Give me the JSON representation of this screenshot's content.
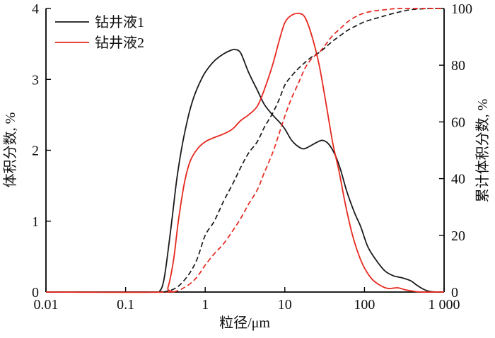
{
  "figure_title": "",
  "chart_data": {
    "type": "line",
    "x_scale": "log",
    "xlabel": "粒径/μm",
    "y_left_label": "体积分数, %",
    "y_right_label": "累计体积分数, %",
    "x_range": [
      0.01,
      1000
    ],
    "y_left_range": [
      0,
      4
    ],
    "y_right_range": [
      0,
      100
    ],
    "x_ticks": [
      {
        "value": 0.01,
        "label": "0.01"
      },
      {
        "value": 0.1,
        "label": "0.1"
      },
      {
        "value": 1,
        "label": "1"
      },
      {
        "value": 10,
        "label": "10"
      },
      {
        "value": 100,
        "label": "100"
      },
      {
        "value": 1000,
        "label": "1 000"
      }
    ],
    "y_left_ticks": [
      {
        "value": 0,
        "label": "0"
      },
      {
        "value": 1,
        "label": "1"
      },
      {
        "value": 2,
        "label": "2"
      },
      {
        "value": 3,
        "label": "3"
      },
      {
        "value": 4,
        "label": "4"
      }
    ],
    "y_right_ticks": [
      {
        "value": 0,
        "label": "0"
      },
      {
        "value": 20,
        "label": "20"
      },
      {
        "value": 40,
        "label": "40"
      },
      {
        "value": 60,
        "label": "60"
      },
      {
        "value": 80,
        "label": "80"
      },
      {
        "value": 100,
        "label": "100"
      }
    ],
    "grid": false,
    "legend_position": "top-left-inside",
    "legend": [
      {
        "label": "钻井液1",
        "color": "#1a1a1a"
      },
      {
        "label": "钻井液2",
        "color": "#e6281e"
      }
    ],
    "colors": {
      "fluid1": "#1a1a1a",
      "fluid2": "#e6281e",
      "axis": "#000000"
    },
    "series": [
      {
        "name": "钻井液1 体积分数",
        "legend": "钻井液1",
        "axis": "left",
        "style": "solid",
        "color": "#1a1a1a",
        "points": [
          [
            0.01,
            0
          ],
          [
            0.22,
            0
          ],
          [
            0.27,
            0.02
          ],
          [
            0.3,
            0.15
          ],
          [
            0.33,
            0.45
          ],
          [
            0.38,
            1.0
          ],
          [
            0.44,
            1.6
          ],
          [
            0.52,
            2.1
          ],
          [
            0.62,
            2.5
          ],
          [
            0.72,
            2.75
          ],
          [
            0.85,
            2.95
          ],
          [
            1.0,
            3.1
          ],
          [
            1.3,
            3.26
          ],
          [
            1.7,
            3.36
          ],
          [
            2.1,
            3.41
          ],
          [
            2.4,
            3.42
          ],
          [
            2.8,
            3.37
          ],
          [
            3.5,
            3.1
          ],
          [
            4.5,
            2.85
          ],
          [
            5.5,
            2.65
          ],
          [
            7.0,
            2.5
          ],
          [
            8.5,
            2.4
          ],
          [
            10,
            2.3
          ],
          [
            12,
            2.15
          ],
          [
            14,
            2.07
          ],
          [
            17,
            2.02
          ],
          [
            20,
            2.05
          ],
          [
            25,
            2.11
          ],
          [
            30,
            2.14
          ],
          [
            36,
            2.08
          ],
          [
            43,
            1.93
          ],
          [
            50,
            1.73
          ],
          [
            60,
            1.42
          ],
          [
            75,
            1.12
          ],
          [
            90,
            0.92
          ],
          [
            110,
            0.64
          ],
          [
            140,
            0.45
          ],
          [
            180,
            0.3
          ],
          [
            230,
            0.23
          ],
          [
            300,
            0.2
          ],
          [
            380,
            0.16
          ],
          [
            450,
            0.1
          ],
          [
            550,
            0.04
          ],
          [
            650,
            0.01
          ],
          [
            800,
            0
          ],
          [
            1000,
            0
          ]
        ]
      },
      {
        "name": "钻井液2 体积分数",
        "legend": "钻井液2",
        "axis": "left",
        "style": "solid",
        "color": "#e6281e",
        "points": [
          [
            0.01,
            0
          ],
          [
            0.3,
            0
          ],
          [
            0.34,
            0.06
          ],
          [
            0.4,
            0.45
          ],
          [
            0.46,
            1.0
          ],
          [
            0.55,
            1.55
          ],
          [
            0.65,
            1.85
          ],
          [
            0.8,
            2.02
          ],
          [
            1.0,
            2.12
          ],
          [
            1.3,
            2.18
          ],
          [
            1.7,
            2.23
          ],
          [
            2.2,
            2.3
          ],
          [
            2.8,
            2.42
          ],
          [
            3.5,
            2.5
          ],
          [
            4.5,
            2.62
          ],
          [
            5.5,
            2.85
          ],
          [
            7.0,
            3.2
          ],
          [
            8.5,
            3.55
          ],
          [
            10,
            3.8
          ],
          [
            12,
            3.9
          ],
          [
            15,
            3.93
          ],
          [
            18,
            3.87
          ],
          [
            22,
            3.6
          ],
          [
            27,
            3.2
          ],
          [
            33,
            2.65
          ],
          [
            40,
            2.1
          ],
          [
            48,
            1.7
          ],
          [
            58,
            1.22
          ],
          [
            70,
            0.82
          ],
          [
            85,
            0.52
          ],
          [
            100,
            0.34
          ],
          [
            125,
            0.18
          ],
          [
            160,
            0.09
          ],
          [
            200,
            0.05
          ],
          [
            260,
            0.06
          ],
          [
            330,
            0.03
          ],
          [
            420,
            0.01
          ],
          [
            520,
            0
          ],
          [
            1000,
            0
          ]
        ]
      },
      {
        "name": "钻井液1 累计体积分数",
        "legend": "钻井液1",
        "axis": "right",
        "style": "dashed",
        "color": "#1a1a1a",
        "points": [
          [
            0.3,
            0
          ],
          [
            0.4,
            1
          ],
          [
            0.5,
            3
          ],
          [
            0.65,
            7
          ],
          [
            0.8,
            12
          ],
          [
            1.0,
            20
          ],
          [
            1.3,
            25
          ],
          [
            1.7,
            32
          ],
          [
            2.2,
            38
          ],
          [
            2.8,
            44
          ],
          [
            3.5,
            49
          ],
          [
            4.5,
            53
          ],
          [
            5.5,
            58
          ],
          [
            7,
            63
          ],
          [
            8.5,
            68
          ],
          [
            10,
            73
          ],
          [
            12,
            76
          ],
          [
            15,
            79
          ],
          [
            18,
            81
          ],
          [
            22,
            83
          ],
          [
            27,
            84.5
          ],
          [
            33,
            86.5
          ],
          [
            40,
            88.5
          ],
          [
            50,
            90.5
          ],
          [
            63,
            92.5
          ],
          [
            80,
            94
          ],
          [
            100,
            95.3
          ],
          [
            130,
            96.3
          ],
          [
            160,
            97
          ],
          [
            200,
            97.8
          ],
          [
            260,
            98.6
          ],
          [
            330,
            99.3
          ],
          [
            420,
            99.7
          ],
          [
            550,
            99.9
          ],
          [
            700,
            100
          ],
          [
            1000,
            100
          ]
        ]
      },
      {
        "name": "钻井液2 累计体积分数",
        "legend": "钻井液2",
        "axis": "right",
        "style": "dashed",
        "color": "#e6281e",
        "points": [
          [
            0.4,
            0
          ],
          [
            0.5,
            1
          ],
          [
            0.65,
            3
          ],
          [
            0.8,
            5.5
          ],
          [
            1.0,
            9.5
          ],
          [
            1.3,
            13.5
          ],
          [
            1.7,
            17
          ],
          [
            2.2,
            21.5
          ],
          [
            2.8,
            26
          ],
          [
            3.5,
            31
          ],
          [
            4.5,
            36
          ],
          [
            5.5,
            42
          ],
          [
            7,
            49
          ],
          [
            8.5,
            56
          ],
          [
            10,
            62
          ],
          [
            12,
            68
          ],
          [
            15,
            74
          ],
          [
            18,
            79
          ],
          [
            22,
            82.5
          ],
          [
            27,
            84.5
          ],
          [
            33,
            87.5
          ],
          [
            40,
            90.5
          ],
          [
            50,
            93
          ],
          [
            63,
            95.5
          ],
          [
            80,
            97.3
          ],
          [
            100,
            98.4
          ],
          [
            130,
            99.1
          ],
          [
            160,
            99.4
          ],
          [
            200,
            99.7
          ],
          [
            260,
            100
          ],
          [
            400,
            100
          ],
          [
            1000,
            100
          ]
        ]
      }
    ]
  }
}
